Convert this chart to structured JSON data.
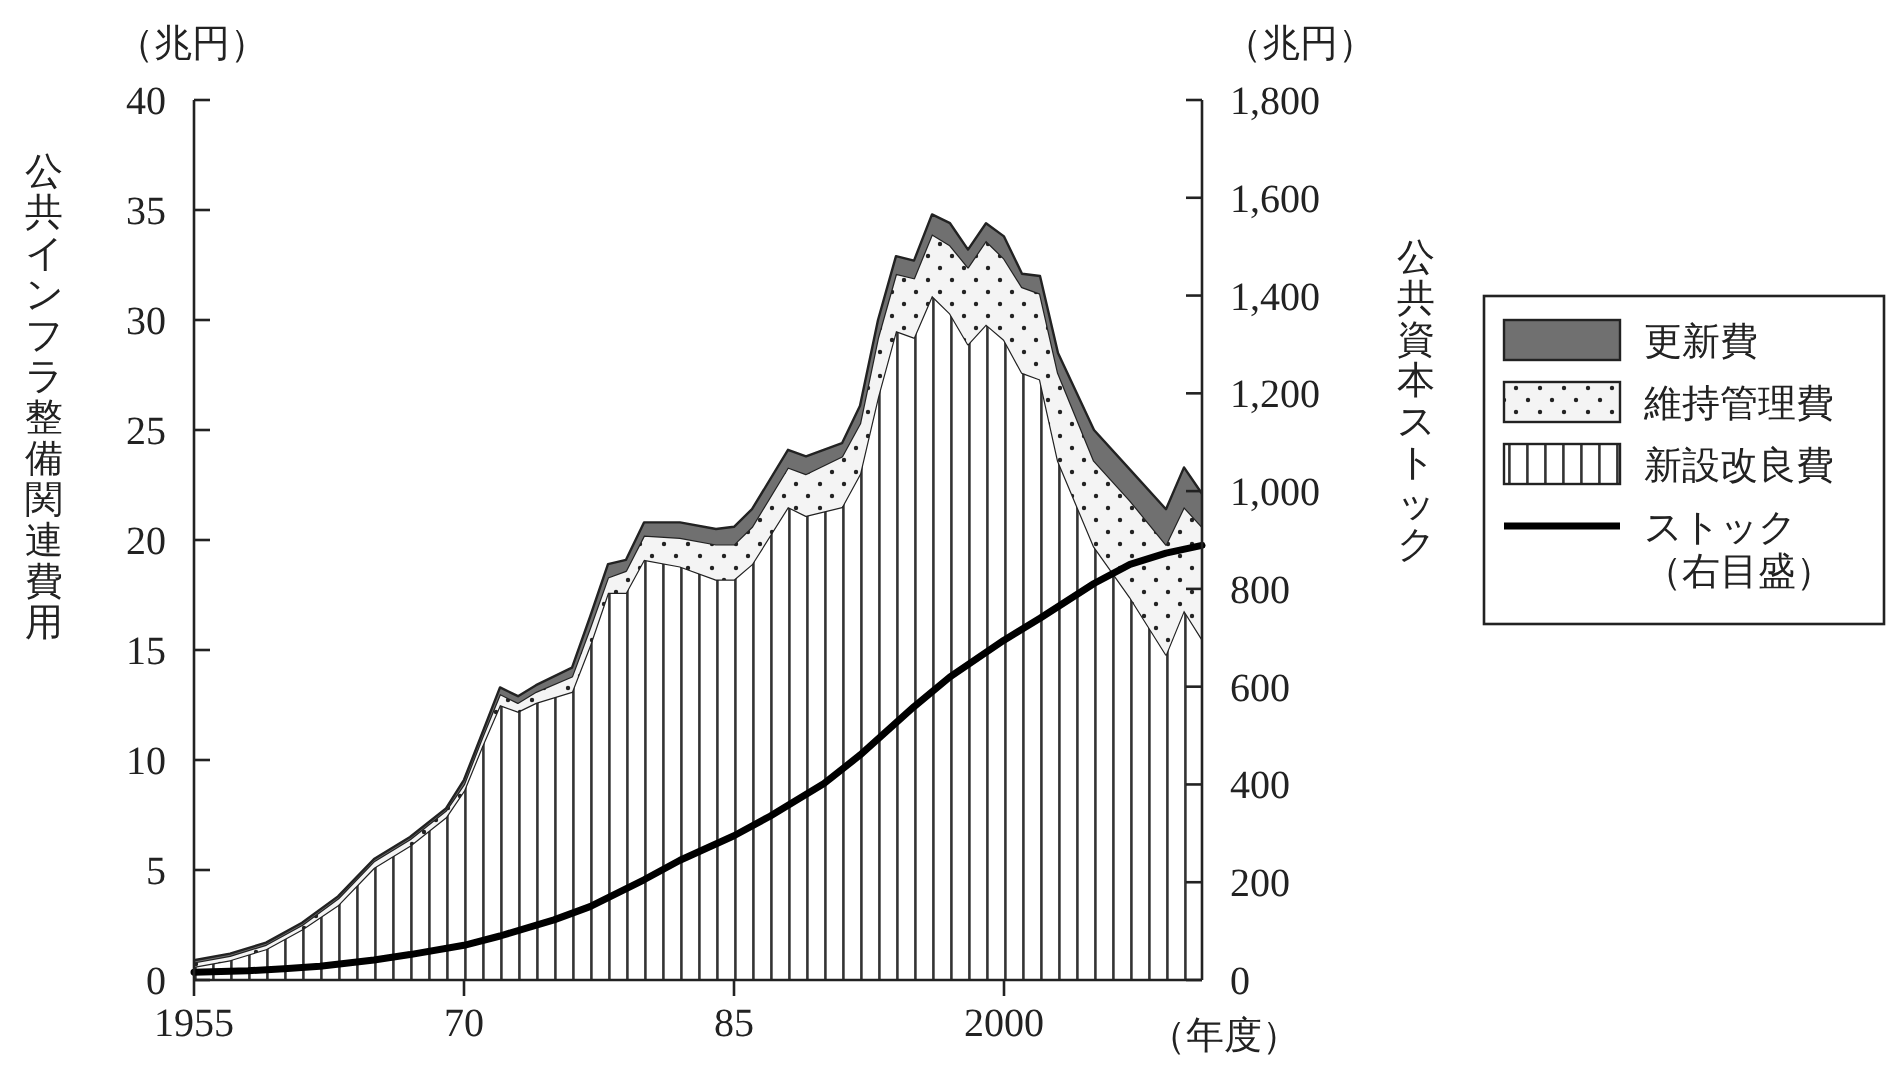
{
  "chart_data": {
    "type": "area",
    "stacked": true,
    "xlabel": "（年度）",
    "ylabel": "公共インフラ整備関連費用",
    "y2label": "公共資本ストック",
    "annotations": [
      "（兆円）",
      "（兆円）"
    ],
    "x": [
      1955,
      1957,
      1959,
      1961,
      1963,
      1965,
      1967,
      1969,
      1970,
      1971,
      1972,
      1973,
      1974,
      1976,
      1977,
      1978,
      1979,
      1980,
      1982,
      1984,
      1985,
      1986,
      1988,
      1989,
      1991,
      1992,
      1993,
      1994,
      1995,
      1996,
      1997,
      1998,
      1999,
      2000,
      2001,
      2002,
      2003,
      2005,
      2007,
      2009,
      2010,
      2011
    ],
    "series": [
      {
        "name": "新設改良費",
        "color": "#ffffff",
        "values": [
          0.6,
          0.9,
          1.4,
          2.3,
          3.4,
          5.1,
          6.1,
          7.4,
          8.6,
          10.6,
          12.5,
          12.2,
          12.6,
          13.1,
          15.2,
          17.6,
          17.6,
          19.1,
          18.8,
          18.2,
          18.2,
          18.9,
          21.5,
          21.1,
          21.5,
          23.0,
          26.5,
          29.5,
          29.2,
          31.1,
          30.3,
          28.9,
          29.8,
          29.1,
          27.6,
          27.3,
          23.6,
          19.7,
          17.4,
          14.8,
          16.8,
          15.5
        ]
      },
      {
        "name": "維持管理費",
        "color": "#f4f4f4",
        "values": [
          0.2,
          0.2,
          0.2,
          0.2,
          0.3,
          0.3,
          0.3,
          0.3,
          0.3,
          0.4,
          0.5,
          0.4,
          0.5,
          0.7,
          0.8,
          0.7,
          1.0,
          1.1,
          1.3,
          1.6,
          1.6,
          1.7,
          1.8,
          1.9,
          2.3,
          2.3,
          2.7,
          2.6,
          2.7,
          2.8,
          3.1,
          3.5,
          3.8,
          3.7,
          3.9,
          3.9,
          4.0,
          3.9,
          4.4,
          5.0,
          4.7,
          5.1
        ]
      },
      {
        "name": "更新費",
        "color": "#707070",
        "values": [
          0.1,
          0.1,
          0.1,
          0.1,
          0.1,
          0.1,
          0.1,
          0.1,
          0.2,
          0.2,
          0.3,
          0.3,
          0.3,
          0.4,
          0.5,
          0.6,
          0.5,
          0.6,
          0.7,
          0.7,
          0.8,
          0.8,
          0.8,
          0.8,
          0.6,
          0.8,
          0.8,
          0.8,
          0.8,
          0.9,
          1.0,
          0.8,
          0.8,
          1.0,
          0.6,
          0.8,
          0.9,
          1.4,
          1.4,
          1.6,
          1.8,
          1.5
        ]
      },
      {
        "name": "ストック（右目盛）",
        "type": "line",
        "axis": "y2",
        "color": "#000000",
        "x": [
          1955,
          1958,
          1960,
          1962,
          1965,
          1967,
          1970,
          1972,
          1975,
          1977,
          1980,
          1982,
          1985,
          1987,
          1990,
          1992,
          1995,
          1997,
          2000,
          2002,
          2005,
          2007,
          2009,
          2011
        ],
        "values": [
          16,
          19,
          23,
          28,
          41,
          52,
          71,
          90,
          123,
          150,
          205,
          245,
          295,
          335,
          402,
          460,
          559,
          620,
          695,
          740,
          811,
          850,
          873,
          889
        ]
      }
    ],
    "xlim": [
      1955,
      2011
    ],
    "xticks": [
      1955,
      {
        "value": 1970,
        "label": "70"
      },
      {
        "value": 1985,
        "label": "85"
      },
      2000
    ],
    "ylim": [
      0,
      40
    ],
    "yticks": [
      0,
      5,
      10,
      15,
      20,
      25,
      30,
      35,
      40
    ],
    "y2lim": [
      0,
      1800
    ],
    "y2ticks": [
      0,
      200,
      400,
      600,
      800,
      {
        "value": 1000,
        "label": "1,000"
      },
      {
        "value": 1200,
        "label": "1,200"
      },
      {
        "value": 1400,
        "label": "1,400"
      },
      {
        "value": 1600,
        "label": "1,600"
      },
      {
        "value": 1800,
        "label": "1,800"
      }
    ],
    "grid": false,
    "legend": "right"
  }
}
